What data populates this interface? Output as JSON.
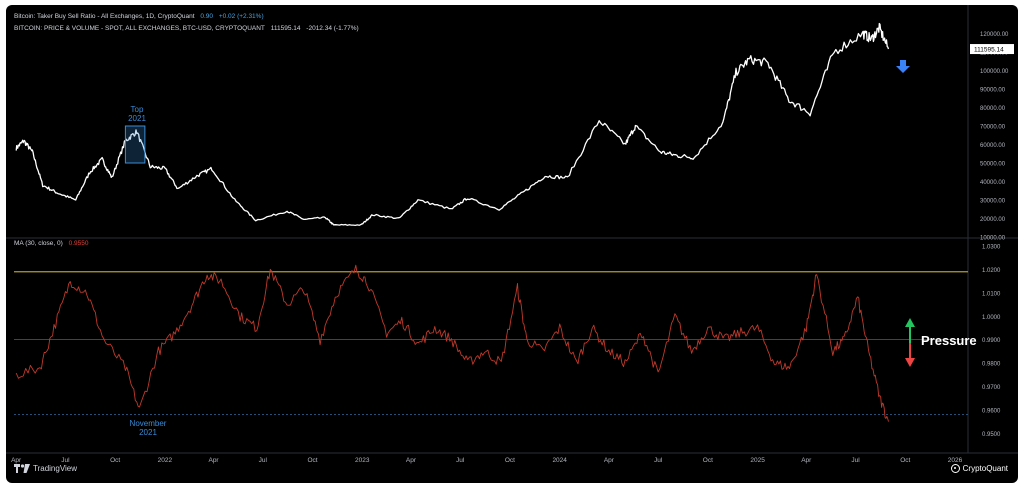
{
  "header": {
    "line1_label": "Bitcoin: Taker Buy Sell Ratio - All Exchanges, 1D, CryptoQuant",
    "line1_value": "0.90",
    "line1_change": "+0.02 (+2.31%)",
    "line2_label": "BITCOIN: PRICE & VOLUME - SPOT, ALL EXCHANGES, BTC-USD, CRYPTOQUANT",
    "line2_value": "111595.14",
    "line2_change": "-2012.34 (-1.77%)"
  },
  "indicator": {
    "label": "MA (30, close, 0)",
    "value": "0.9550"
  },
  "annotations": {
    "top_line1": "Top",
    "top_line2": "2021",
    "bottom_line1": "November",
    "bottom_line2": "2021",
    "pressure": "Pressure"
  },
  "branding": {
    "left": "TradingView",
    "right": "CryptoQuant"
  },
  "colors": {
    "price": "#ffffff",
    "ratio": "#c0392b",
    "upper_line": "#b59a2a",
    "mid_line": "#555a66",
    "low_line": "#2a5c8a",
    "annotation": "#3a8bd6",
    "arrow_up": "#22c55e",
    "arrow_down": "#ef4444",
    "down_arrow": "#3b82f6"
  },
  "chart_data": [
    {
      "type": "line",
      "x_tick_labels": [
        "Apr",
        "Jul",
        "Oct",
        "2022",
        "Apr",
        "Jul",
        "Oct",
        "2023",
        "Apr",
        "Jul",
        "Oct",
        "2024",
        "Apr",
        "Jul",
        "Oct",
        "2025",
        "Apr",
        "Jul",
        "Oct",
        "2026"
      ],
      "y_tick_labels": [
        "10000.00",
        "20000.00",
        "30000.00",
        "40000.00",
        "50000.00",
        "60000.00",
        "70000.00",
        "80000.00",
        "90000.00",
        "100000.00",
        "110000.00",
        "120000.00"
      ],
      "ylim": [
        10000,
        130000
      ],
      "last_value_label": "111595.14",
      "series": [
        {
          "x": [
            "2021-04-01",
            "2021-04-15",
            "2021-05-01",
            "2021-05-20",
            "2021-06-15",
            "2021-07-20",
            "2021-08-15",
            "2021-09-07",
            "2021-09-25",
            "2021-10-20",
            "2021-11-10",
            "2021-12-05",
            "2022-01-01",
            "2022-01-25",
            "2022-03-01",
            "2022-03-29",
            "2022-05-10",
            "2022-06-18",
            "2022-08-15",
            "2022-09-15",
            "2022-10-25",
            "2022-11-09",
            "2022-12-30",
            "2023-01-20",
            "2023-03-10",
            "2023-04-14",
            "2023-06-15",
            "2023-07-14",
            "2023-09-11",
            "2023-10-25",
            "2023-12-05",
            "2024-01-15",
            "2024-03-14",
            "2024-05-01",
            "2024-05-20",
            "2024-07-05",
            "2024-08-05",
            "2024-09-06",
            "2024-10-29",
            "2024-11-22",
            "2024-12-17",
            "2025-01-20",
            "2025-02-28",
            "2025-04-08",
            "2025-05-22",
            "2025-07-14",
            "2025-07-31",
            "2025-08-14",
            "2025-08-31"
          ],
          "y": [
            58000,
            62000,
            56000,
            38000,
            34000,
            30000,
            45000,
            52000,
            42000,
            62000,
            67000,
            48000,
            47000,
            36000,
            43000,
            47000,
            30000,
            19000,
            24000,
            19500,
            20500,
            16500,
            16500,
            22000,
            20000,
            30000,
            25000,
            31000,
            25000,
            34000,
            43000,
            42000,
            73000,
            60000,
            70000,
            56000,
            54000,
            53000,
            72000,
            99000,
            106000,
            104000,
            84000,
            77000,
            110000,
            120000,
            117000,
            123000,
            111595
          ]
        }
      ]
    },
    {
      "type": "line",
      "x_tick_labels": [
        "Apr",
        "Jul",
        "Oct",
        "2022",
        "Apr",
        "Jul",
        "Oct",
        "2023",
        "Apr",
        "Jul",
        "Oct",
        "2024",
        "Apr",
        "Jul",
        "Oct",
        "2025",
        "Apr",
        "Jul",
        "Oct",
        "2026"
      ],
      "y_tick_labels": [
        "0.9500",
        "0.9600",
        "0.9700",
        "0.9800",
        "0.9900",
        "1.0000",
        "1.0100",
        "1.0200",
        "1.0300"
      ],
      "ylim": [
        0.945,
        1.033
      ],
      "series": [
        {
          "x": [
            "2021-04-01",
            "2021-05-15",
            "2021-06-10",
            "2021-07-10",
            "2021-08-10",
            "2021-09-10",
            "2021-10-20",
            "2021-11-15",
            "2021-12-20",
            "2022-01-20",
            "2022-02-20",
            "2022-03-20",
            "2022-04-15",
            "2022-05-20",
            "2022-06-20",
            "2022-07-15",
            "2022-08-15",
            "2022-09-15",
            "2022-10-15",
            "2022-11-15",
            "2022-12-20",
            "2023-01-10",
            "2023-02-15",
            "2023-03-15",
            "2023-04-15",
            "2023-05-15",
            "2023-06-15",
            "2023-07-15",
            "2023-08-15",
            "2023-09-15",
            "2023-10-15",
            "2023-11-01",
            "2023-12-01",
            "2024-01-01",
            "2024-02-01",
            "2024-03-01",
            "2024-04-01",
            "2024-05-01",
            "2024-06-01",
            "2024-07-01",
            "2024-08-01",
            "2024-09-01",
            "2024-10-01",
            "2024-11-01",
            "2024-12-01",
            "2025-01-01",
            "2025-02-01",
            "2025-03-01",
            "2025-04-01",
            "2025-04-20",
            "2025-05-20",
            "2025-06-10",
            "2025-07-05",
            "2025-07-25",
            "2025-08-15",
            "2025-08-31"
          ],
          "y": [
            0.975,
            0.978,
            0.995,
            1.015,
            1.01,
            0.99,
            0.978,
            0.96,
            0.985,
            0.993,
            1.005,
            1.018,
            1.015,
            1.0,
            0.995,
            1.02,
            1.005,
            1.012,
            0.99,
            1.01,
            1.02,
            1.015,
            0.993,
            0.998,
            0.988,
            0.995,
            0.99,
            0.98,
            0.985,
            0.98,
            1.012,
            0.99,
            0.985,
            0.995,
            0.98,
            0.995,
            0.985,
            0.98,
            0.993,
            0.975,
            1.0,
            0.985,
            0.995,
            0.99,
            0.993,
            0.995,
            0.98,
            0.978,
            0.995,
            1.018,
            0.985,
            0.99,
            1.008,
            0.985,
            0.965,
            0.955
          ]
        }
      ],
      "reference_lines": [
        1.019,
        0.99,
        0.958
      ]
    }
  ]
}
